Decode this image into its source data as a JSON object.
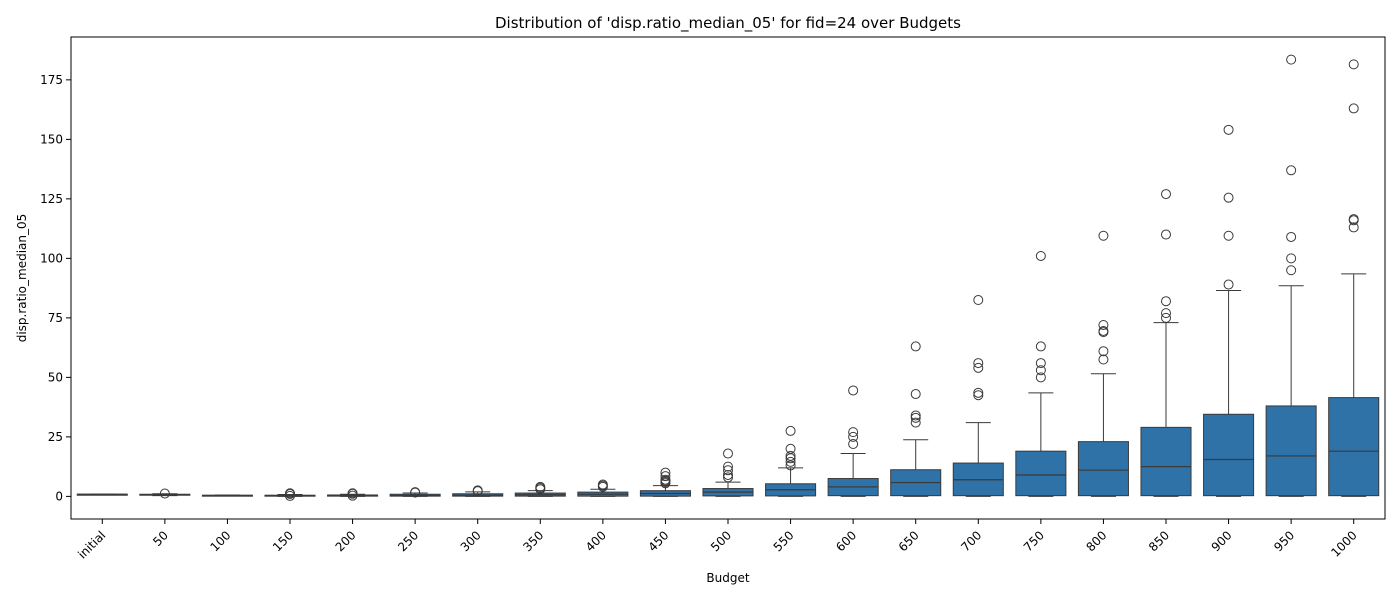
{
  "chart_data": {
    "type": "box",
    "title": "Distribution of 'disp.ratio_median_05' for fid=24 over Budgets",
    "xlabel": "Budget",
    "ylabel": "disp.ratio_median_05",
    "ylim": [
      -9.5,
      193
    ],
    "yticks": [
      0,
      25,
      50,
      75,
      100,
      125,
      150,
      175
    ],
    "grid": false,
    "box_color": "#2f72a8",
    "line_color": "#3a3a3a",
    "categories": [
      "initial",
      "50",
      "100",
      "150",
      "200",
      "250",
      "300",
      "350",
      "400",
      "450",
      "500",
      "550",
      "600",
      "650",
      "700",
      "750",
      "800",
      "850",
      "900",
      "950",
      "1000"
    ],
    "boxes": [
      {
        "min": 0.9,
        "q1": 0.9,
        "median": 0.9,
        "q3": 0.9,
        "max": 0.9,
        "outliers": []
      },
      {
        "min": 0.3,
        "q1": 0.5,
        "median": 0.7,
        "q3": 0.9,
        "max": 1.1,
        "outliers": [
          1.2
        ]
      },
      {
        "min": 0.2,
        "q1": 0.3,
        "median": 0.4,
        "q3": 0.5,
        "max": 0.6,
        "outliers": []
      },
      {
        "min": 0.0,
        "q1": 0.1,
        "median": 0.3,
        "q3": 0.5,
        "max": 0.8,
        "outliers": [
          0.2,
          1.0,
          1.3
        ]
      },
      {
        "min": 0.0,
        "q1": 0.1,
        "median": 0.3,
        "q3": 0.6,
        "max": 0.9,
        "outliers": [
          0.3,
          1.1,
          1.3
        ]
      },
      {
        "min": 0.0,
        "q1": 0.1,
        "median": 0.4,
        "q3": 0.9,
        "max": 1.4,
        "outliers": [
          1.6,
          1.8
        ]
      },
      {
        "min": 0.0,
        "q1": 0.1,
        "median": 0.5,
        "q3": 1.1,
        "max": 1.9,
        "outliers": [
          2.2,
          2.5
        ]
      },
      {
        "min": 0.0,
        "q1": 0.1,
        "median": 0.7,
        "q3": 1.4,
        "max": 2.4,
        "outliers": [
          3.0,
          3.5,
          4.0
        ]
      },
      {
        "min": 0.0,
        "q1": 0.1,
        "median": 0.9,
        "q3": 1.8,
        "max": 3.0,
        "outliers": [
          4.0,
          4.5,
          5.0
        ]
      },
      {
        "min": 0.0,
        "q1": 0.1,
        "median": 1.2,
        "q3": 2.4,
        "max": 4.5,
        "outliers": [
          5.5,
          6.0,
          6.5,
          7.0,
          8.5,
          10.0
        ]
      },
      {
        "min": 0.0,
        "q1": 0.2,
        "median": 1.8,
        "q3": 3.3,
        "max": 6.0,
        "outliers": [
          8.0,
          9.0,
          11.0,
          12.5,
          18.0
        ]
      },
      {
        "min": 0.0,
        "q1": 0.2,
        "median": 2.8,
        "q3": 5.3,
        "max": 12.0,
        "outliers": [
          13.0,
          14.5,
          16.0,
          17.0,
          20.0,
          27.5
        ]
      },
      {
        "min": 0.0,
        "q1": 0.3,
        "median": 4.0,
        "q3": 7.5,
        "max": 18.0,
        "outliers": [
          22.0,
          25.0,
          27.0,
          44.5
        ]
      },
      {
        "min": 0.0,
        "q1": 0.3,
        "median": 5.8,
        "q3": 11.2,
        "max": 23.8,
        "outliers": [
          31.0,
          33.0,
          34.0,
          43.0,
          63.0
        ]
      },
      {
        "min": 0.0,
        "q1": 0.3,
        "median": 7.0,
        "q3": 14.0,
        "max": 31.0,
        "outliers": [
          42.5,
          43.5,
          54.0,
          56.0,
          82.5
        ]
      },
      {
        "min": 0.0,
        "q1": 0.3,
        "median": 9.0,
        "q3": 19.0,
        "max": 43.5,
        "outliers": [
          50.0,
          53.0,
          56.0,
          63.0,
          101.0
        ]
      },
      {
        "min": 0.0,
        "q1": 0.3,
        "median": 11.0,
        "q3": 23.0,
        "max": 51.5,
        "outliers": [
          57.5,
          61.0,
          69.0,
          69.5,
          72.0,
          109.5
        ]
      },
      {
        "min": 0.0,
        "q1": 0.3,
        "median": 12.5,
        "q3": 29.0,
        "max": 73.0,
        "outliers": [
          75.0,
          77.0,
          82.0,
          110.0,
          127.0
        ]
      },
      {
        "min": 0.0,
        "q1": 0.3,
        "median": 15.5,
        "q3": 34.5,
        "max": 86.5,
        "outliers": [
          89.0,
          109.5,
          125.5,
          154.0
        ]
      },
      {
        "min": 0.0,
        "q1": 0.3,
        "median": 17.0,
        "q3": 38.0,
        "max": 88.5,
        "outliers": [
          95.0,
          100.0,
          109.0,
          137.0,
          183.5
        ]
      },
      {
        "min": 0.0,
        "q1": 0.3,
        "median": 19.0,
        "q3": 41.5,
        "max": 93.5,
        "outliers": [
          113.0,
          116.0,
          116.5,
          163.0,
          181.5
        ]
      }
    ]
  }
}
